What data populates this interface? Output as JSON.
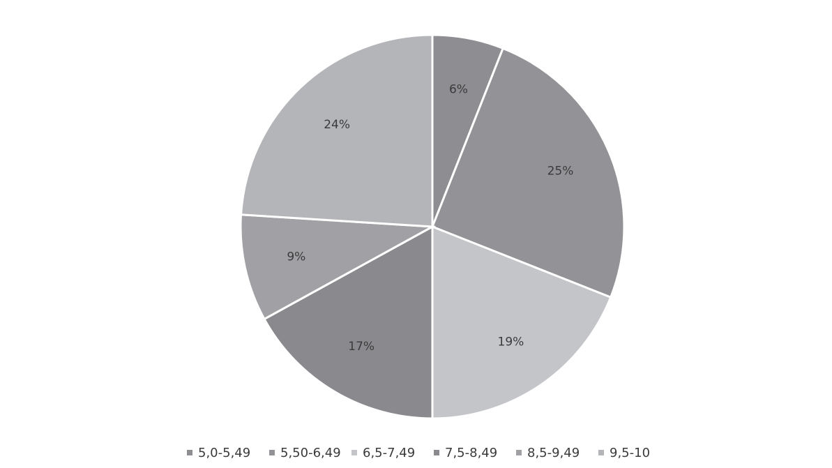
{
  "chart_data": {
    "type": "pie",
    "categories": [
      "5,0-5,49",
      "5,50-6,49",
      "6,5-7,49",
      "7,5-8,49",
      "8,5-9,49",
      "9,5-10"
    ],
    "values": [
      6,
      25,
      19,
      17,
      9,
      24
    ],
    "data_labels": [
      "6%",
      "25%",
      "19%",
      "17%",
      "9%",
      "24%"
    ],
    "colors": [
      "#8e8e92",
      "#939397",
      "#c4c5c9",
      "#8a8a8e",
      "#a1a1a5",
      "#b4b5b9"
    ],
    "legend_position": "bottom",
    "start_angle": "top",
    "direction": "clockwise"
  }
}
